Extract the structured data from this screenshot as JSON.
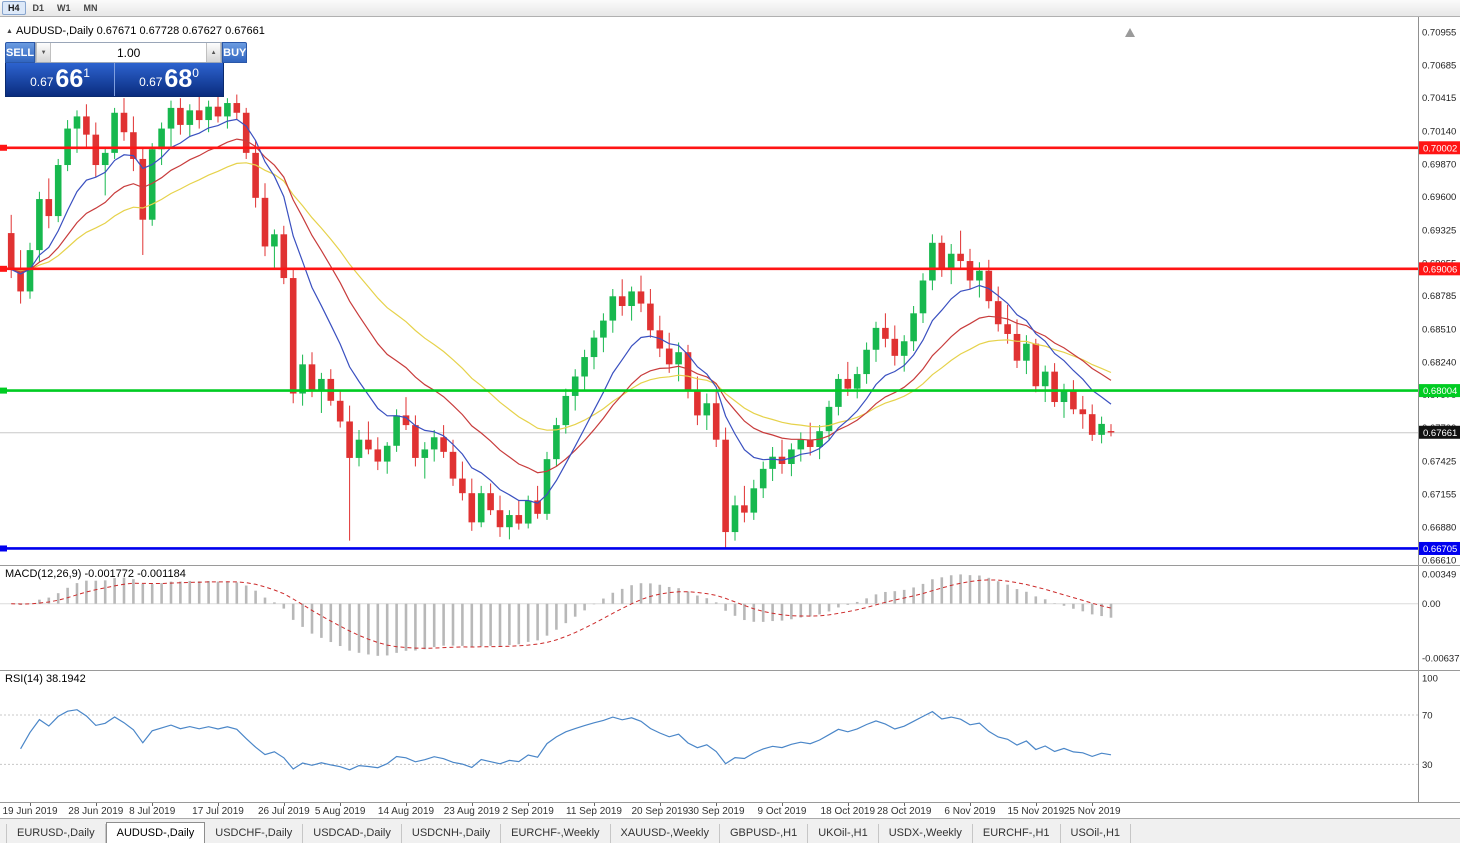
{
  "toolbar": {
    "timeframes": [
      "H4",
      "D1",
      "W1",
      "MN"
    ],
    "active": "H4"
  },
  "chart": {
    "title": "AUDUSD-,Daily",
    "ohlc": "0.67671 0.67728 0.67627 0.67661"
  },
  "icons": {
    "panel_toggle": "▲",
    "volume_down": "▼",
    "volume_up": "▲"
  },
  "trade": {
    "sell_label": "SELL",
    "buy_label": "BUY",
    "volume": "1.00",
    "sell_price": {
      "big": "0.67",
      "mid": "66",
      "sup": "1"
    },
    "buy_price": {
      "big": "0.67",
      "mid": "68",
      "sup": "0"
    }
  },
  "macd": {
    "name": "MACD(12,26,9)",
    "values": "-0.001772 -0.001184"
  },
  "rsi": {
    "name": "RSI(14)",
    "value": "38.1942"
  },
  "tabbar": {
    "active": 1,
    "tabs": [
      "EURUSD-,Daily",
      "AUDUSD-,Daily",
      "USDCHF-,Daily",
      "USDCAD-,Daily",
      "USDCNH-,Daily",
      "EURCHF-,Weekly",
      "XAUUSD-,Weekly",
      "GBPUSD-,H1",
      "UKOil-,H1",
      "USDX-,Weekly",
      "EURCHF-,H1",
      "USOil-,H1"
    ]
  },
  "chart_data": {
    "type": "candlestick",
    "symbol": "AUDUSD",
    "timeframe": "Daily",
    "colors": {
      "up": "#17b84e",
      "down": "#e03232",
      "ma_fast": "#3a50c0",
      "ma_mid": "#c83c3c",
      "ma_slow": "#e6d24b",
      "rsi": "#4a86c8",
      "macd_hist": "#b8b8b8",
      "macd_signal": "#cc2a2a",
      "price_tag_bg": "#111111"
    },
    "price_axis": {
      "y_top": 0.71078,
      "y_bottom": 0.66569,
      "labels": [
        "0.70955",
        "0.70685",
        "0.70415",
        "0.70140",
        "0.69870",
        "0.69600",
        "0.69325",
        "0.69055",
        "0.68785",
        "0.68510",
        "0.68240",
        "0.67970",
        "0.67700",
        "0.67425",
        "0.67155",
        "0.66880",
        "0.66610"
      ]
    },
    "hlines": [
      {
        "price": 0.70002,
        "label": "0.70002",
        "color": "#ff1414"
      },
      {
        "price": 0.69006,
        "label": "0.69006",
        "color": "#ff1414"
      },
      {
        "price": 0.68004,
        "label": "0.68004",
        "color": "#00cc22"
      },
      {
        "price": 0.66705,
        "label": "0.66705",
        "color": "#0000ee"
      }
    ],
    "current_price": {
      "value": 0.67661,
      "label": "0.67661"
    },
    "time_labels": [
      {
        "text": "19 Jun 2019",
        "i": 2
      },
      {
        "text": "28 Jun 2019",
        "i": 9
      },
      {
        "text": "8 Jul 2019",
        "i": 15
      },
      {
        "text": "17 Jul 2019",
        "i": 22
      },
      {
        "text": "26 Jul 2019",
        "i": 29
      },
      {
        "text": "5 Aug 2019",
        "i": 35
      },
      {
        "text": "14 Aug 2019",
        "i": 42
      },
      {
        "text": "23 Aug 2019",
        "i": 49
      },
      {
        "text": "2 Sep 2019",
        "i": 55
      },
      {
        "text": "11 Sep 2019",
        "i": 62
      },
      {
        "text": "20 Sep 2019",
        "i": 69
      },
      {
        "text": "30 Sep 2019",
        "i": 75
      },
      {
        "text": "9 Oct 2019",
        "i": 82
      },
      {
        "text": "18 Oct 2019",
        "i": 89
      },
      {
        "text": "28 Oct 2019",
        "i": 95
      },
      {
        "text": "6 Nov 2019",
        "i": 102
      },
      {
        "text": "15 Nov 2019",
        "i": 109
      },
      {
        "text": "25 Nov 2019",
        "i": 115
      }
    ],
    "indicators": {
      "macd": {
        "name": "MACD(12,26,9)",
        "value_main": -0.001772,
        "value_signal": -0.001184,
        "axis": [
          {
            "text": "0.00349",
            "v": 0.00349
          },
          {
            "text": "0.00",
            "v": 0
          },
          {
            "text": "-0.00637",
            "v": -0.00637
          }
        ]
      },
      "rsi": {
        "name": "RSI(14)",
        "value": 38.1942,
        "axis": [
          {
            "text": "100",
            "v": 100
          },
          {
            "text": "70",
            "v": 70
          },
          {
            "text": "30",
            "v": 30
          }
        ],
        "levels": [
          70,
          30
        ]
      }
    },
    "candles": [
      [
        0.693,
        0.6945,
        0.6893,
        0.69
      ],
      [
        0.69,
        0.6916,
        0.6872,
        0.6882
      ],
      [
        0.6882,
        0.6922,
        0.6876,
        0.6916
      ],
      [
        0.6916,
        0.6964,
        0.6906,
        0.6958
      ],
      [
        0.6958,
        0.6975,
        0.6934,
        0.6944
      ],
      [
        0.6944,
        0.6991,
        0.6939,
        0.6986
      ],
      [
        0.6986,
        0.7023,
        0.6981,
        0.7016
      ],
      [
        0.7016,
        0.7031,
        0.6996,
        0.7026
      ],
      [
        0.7026,
        0.7036,
        0.7001,
        0.7011
      ],
      [
        0.7011,
        0.7021,
        0.6976,
        0.6986
      ],
      [
        0.6986,
        0.7001,
        0.6961,
        0.6996
      ],
      [
        0.6996,
        0.7033,
        0.6991,
        0.7029
      ],
      [
        0.7029,
        0.7041,
        0.7006,
        0.7013
      ],
      [
        0.7013,
        0.7026,
        0.6981,
        0.6991
      ],
      [
        0.6991,
        0.7001,
        0.6912,
        0.6941
      ],
      [
        0.6941,
        0.7004,
        0.6936,
        0.6999
      ],
      [
        0.6999,
        0.7021,
        0.6986,
        0.7016
      ],
      [
        0.7016,
        0.7039,
        0.7001,
        0.7033
      ],
      [
        0.7033,
        0.7041,
        0.7011,
        0.7019
      ],
      [
        0.7019,
        0.7036,
        0.7009,
        0.7031
      ],
      [
        0.7031,
        0.7043,
        0.7016,
        0.7023
      ],
      [
        0.7023,
        0.7039,
        0.7013,
        0.7034
      ],
      [
        0.7034,
        0.7045,
        0.7021,
        0.7026
      ],
      [
        0.7026,
        0.7041,
        0.7016,
        0.7037
      ],
      [
        0.7037,
        0.7044,
        0.7023,
        0.7029
      ],
      [
        0.7029,
        0.7033,
        0.6991,
        0.6996
      ],
      [
        0.6996,
        0.7006,
        0.6951,
        0.6959
      ],
      [
        0.6959,
        0.6971,
        0.6911,
        0.6919
      ],
      [
        0.6919,
        0.6933,
        0.6901,
        0.6929
      ],
      [
        0.6929,
        0.6936,
        0.6888,
        0.6893
      ],
      [
        0.6893,
        0.69,
        0.679,
        0.6798
      ],
      [
        0.6798,
        0.683,
        0.6788,
        0.6822
      ],
      [
        0.6822,
        0.6832,
        0.6795,
        0.68
      ],
      [
        0.68,
        0.6815,
        0.6782,
        0.681
      ],
      [
        0.681,
        0.6818,
        0.6788,
        0.6792
      ],
      [
        0.6792,
        0.68,
        0.677,
        0.6775
      ],
      [
        0.6775,
        0.6788,
        0.6677,
        0.6745
      ],
      [
        0.6745,
        0.6768,
        0.6738,
        0.676
      ],
      [
        0.676,
        0.6775,
        0.6748,
        0.6752
      ],
      [
        0.6752,
        0.6762,
        0.6735,
        0.6742
      ],
      [
        0.6742,
        0.6758,
        0.6732,
        0.6755
      ],
      [
        0.6755,
        0.6785,
        0.675,
        0.678
      ],
      [
        0.678,
        0.6795,
        0.6768,
        0.6772
      ],
      [
        0.6772,
        0.678,
        0.6738,
        0.6745
      ],
      [
        0.6745,
        0.6758,
        0.6728,
        0.6752
      ],
      [
        0.6752,
        0.6768,
        0.6742,
        0.6762
      ],
      [
        0.6762,
        0.6772,
        0.6745,
        0.675
      ],
      [
        0.675,
        0.676,
        0.6722,
        0.6728
      ],
      [
        0.6728,
        0.6742,
        0.671,
        0.6716
      ],
      [
        0.6716,
        0.6728,
        0.6685,
        0.6692
      ],
      [
        0.6692,
        0.6722,
        0.6688,
        0.6716
      ],
      [
        0.6716,
        0.6724,
        0.6698,
        0.6702
      ],
      [
        0.6702,
        0.6714,
        0.668,
        0.6688
      ],
      [
        0.6688,
        0.6702,
        0.6678,
        0.6698
      ],
      [
        0.6698,
        0.671,
        0.6686,
        0.6691
      ],
      [
        0.6691,
        0.6714,
        0.6687,
        0.671
      ],
      [
        0.671,
        0.6722,
        0.6695,
        0.6699
      ],
      [
        0.6699,
        0.675,
        0.6694,
        0.6744
      ],
      [
        0.6744,
        0.6778,
        0.6738,
        0.6772
      ],
      [
        0.6772,
        0.6802,
        0.6765,
        0.6796
      ],
      [
        0.6796,
        0.6818,
        0.6784,
        0.6812
      ],
      [
        0.6812,
        0.6834,
        0.68,
        0.6828
      ],
      [
        0.6828,
        0.685,
        0.6818,
        0.6844
      ],
      [
        0.6844,
        0.6864,
        0.6832,
        0.6858
      ],
      [
        0.6858,
        0.6884,
        0.6848,
        0.6878
      ],
      [
        0.6878,
        0.6892,
        0.6862,
        0.687
      ],
      [
        0.687,
        0.6886,
        0.6858,
        0.6882
      ],
      [
        0.6882,
        0.6895,
        0.6865,
        0.6872
      ],
      [
        0.6872,
        0.6884,
        0.6844,
        0.685
      ],
      [
        0.685,
        0.6862,
        0.6828,
        0.6835
      ],
      [
        0.6835,
        0.6848,
        0.6815,
        0.6822
      ],
      [
        0.6822,
        0.684,
        0.6808,
        0.6832
      ],
      [
        0.6832,
        0.6838,
        0.6794,
        0.68
      ],
      [
        0.68,
        0.6812,
        0.6772,
        0.678
      ],
      [
        0.678,
        0.6798,
        0.6768,
        0.679
      ],
      [
        0.679,
        0.68,
        0.6754,
        0.676
      ],
      [
        0.676,
        0.677,
        0.6671,
        0.6684
      ],
      [
        0.6684,
        0.6714,
        0.6677,
        0.6706
      ],
      [
        0.6706,
        0.6722,
        0.6692,
        0.67
      ],
      [
        0.67,
        0.6727,
        0.6694,
        0.672
      ],
      [
        0.672,
        0.6742,
        0.6712,
        0.6736
      ],
      [
        0.6736,
        0.6754,
        0.6726,
        0.6746
      ],
      [
        0.6746,
        0.676,
        0.6732,
        0.674
      ],
      [
        0.674,
        0.6757,
        0.673,
        0.6752
      ],
      [
        0.6752,
        0.6766,
        0.6742,
        0.676
      ],
      [
        0.676,
        0.6774,
        0.6747,
        0.6754
      ],
      [
        0.6754,
        0.6772,
        0.6744,
        0.6767
      ],
      [
        0.6767,
        0.6792,
        0.676,
        0.6787
      ],
      [
        0.6787,
        0.6814,
        0.678,
        0.681
      ],
      [
        0.681,
        0.6824,
        0.6796,
        0.6802
      ],
      [
        0.6802,
        0.682,
        0.6794,
        0.6814
      ],
      [
        0.6814,
        0.684,
        0.6806,
        0.6834
      ],
      [
        0.6834,
        0.6857,
        0.6824,
        0.6852
      ],
      [
        0.6852,
        0.6864,
        0.6836,
        0.6843
      ],
      [
        0.6843,
        0.6854,
        0.6821,
        0.6829
      ],
      [
        0.6829,
        0.6846,
        0.6816,
        0.6841
      ],
      [
        0.6841,
        0.687,
        0.6833,
        0.6864
      ],
      [
        0.6864,
        0.6897,
        0.6856,
        0.6891
      ],
      [
        0.6891,
        0.6929,
        0.6883,
        0.6922
      ],
      [
        0.6922,
        0.6928,
        0.6894,
        0.6901
      ],
      [
        0.6901,
        0.6921,
        0.6888,
        0.6913
      ],
      [
        0.6913,
        0.6932,
        0.6901,
        0.6907
      ],
      [
        0.6907,
        0.6917,
        0.6884,
        0.6891
      ],
      [
        0.6891,
        0.6906,
        0.6877,
        0.6899
      ],
      [
        0.6899,
        0.6908,
        0.6868,
        0.6874
      ],
      [
        0.6874,
        0.6886,
        0.6849,
        0.6855
      ],
      [
        0.6855,
        0.6871,
        0.6839,
        0.6847
      ],
      [
        0.6847,
        0.6859,
        0.6819,
        0.6825
      ],
      [
        0.6825,
        0.6846,
        0.6814,
        0.6839
      ],
      [
        0.6839,
        0.6843,
        0.6799,
        0.6804
      ],
      [
        0.6804,
        0.6821,
        0.6791,
        0.6816
      ],
      [
        0.6816,
        0.6823,
        0.6787,
        0.6791
      ],
      [
        0.6791,
        0.6806,
        0.6778,
        0.6801
      ],
      [
        0.6801,
        0.6809,
        0.6781,
        0.6785
      ],
      [
        0.6785,
        0.6796,
        0.6769,
        0.6781
      ],
      [
        0.6781,
        0.6789,
        0.6759,
        0.6764
      ],
      [
        0.6764,
        0.6779,
        0.6757,
        0.6773
      ],
      [
        0.67671,
        0.67728,
        0.67627,
        0.67661
      ]
    ]
  }
}
